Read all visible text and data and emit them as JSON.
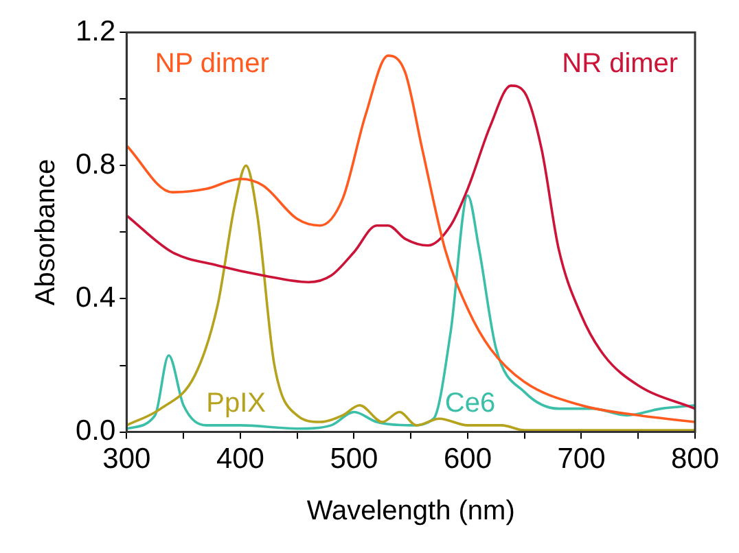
{
  "chart_data": {
    "type": "line",
    "xlabel": "Wavelength (nm)",
    "ylabel": "Absorbance",
    "xlim": [
      300,
      800
    ],
    "ylim": [
      0,
      1.2
    ],
    "xticks": [
      300,
      {
        "value": 350,
        "label": null
      },
      400,
      {
        "value": 450,
        "label": null
      },
      500,
      {
        "value": 550,
        "label": null
      },
      600,
      {
        "value": 650,
        "label": null
      },
      700,
      {
        "value": 750,
        "label": null
      },
      800
    ],
    "yticks": [
      {
        "value": 0,
        "label": "0.0"
      },
      {
        "value": 0.2,
        "label": null
      },
      0.4,
      {
        "value": 0.6,
        "label": null
      },
      0.8,
      {
        "value": 1.0,
        "label": null
      },
      1.2
    ],
    "grid": false,
    "legend": false,
    "marker": "none",
    "line_style": "solid",
    "series": [
      {
        "name": "NP dimer",
        "color": "#ff5a1f",
        "x": [
          300,
          340,
          370,
          400,
          420,
          450,
          470,
          490,
          510,
          530,
          545,
          560,
          580,
          600,
          620,
          650,
          700,
          750,
          800
        ],
        "values": [
          0.86,
          0.72,
          0.73,
          0.76,
          0.74,
          0.64,
          0.62,
          0.7,
          0.95,
          1.13,
          1.08,
          0.85,
          0.55,
          0.37,
          0.25,
          0.15,
          0.08,
          0.05,
          0.03
        ]
      },
      {
        "name": "NR dimer",
        "color": "#cc1439",
        "x": [
          300,
          340,
          380,
          420,
          460,
          480,
          500,
          520,
          530,
          545,
          565,
          585,
          600,
          620,
          638,
          650,
          665,
          680,
          700,
          720,
          750,
          800
        ],
        "values": [
          0.65,
          0.54,
          0.5,
          0.47,
          0.45,
          0.47,
          0.54,
          0.62,
          0.62,
          0.58,
          0.56,
          0.62,
          0.73,
          0.92,
          1.04,
          1.02,
          0.85,
          0.55,
          0.35,
          0.23,
          0.14,
          0.07
        ]
      },
      {
        "name": "PpIX",
        "color": "#b5a21d",
        "x": [
          300,
          330,
          360,
          380,
          395,
          405,
          415,
          430,
          450,
          470,
          490,
          505,
          525,
          540,
          555,
          575,
          600,
          630,
          650,
          800
        ],
        "values": [
          0.02,
          0.07,
          0.17,
          0.38,
          0.68,
          0.8,
          0.65,
          0.2,
          0.05,
          0.03,
          0.05,
          0.08,
          0.03,
          0.06,
          0.02,
          0.04,
          0.02,
          0.02,
          0.005,
          0.005
        ]
      },
      {
        "name": "Ce6",
        "color": "#3cbfa8",
        "x": [
          300,
          325,
          337,
          350,
          370,
          400,
          450,
          480,
          500,
          520,
          550,
          570,
          585,
          600,
          610,
          625,
          650,
          680,
          710,
          740,
          770,
          800
        ],
        "values": [
          0.01,
          0.05,
          0.23,
          0.08,
          0.02,
          0.02,
          0.01,
          0.02,
          0.06,
          0.03,
          0.02,
          0.04,
          0.3,
          0.71,
          0.55,
          0.25,
          0.12,
          0.07,
          0.07,
          0.05,
          0.07,
          0.08
        ]
      }
    ]
  }
}
